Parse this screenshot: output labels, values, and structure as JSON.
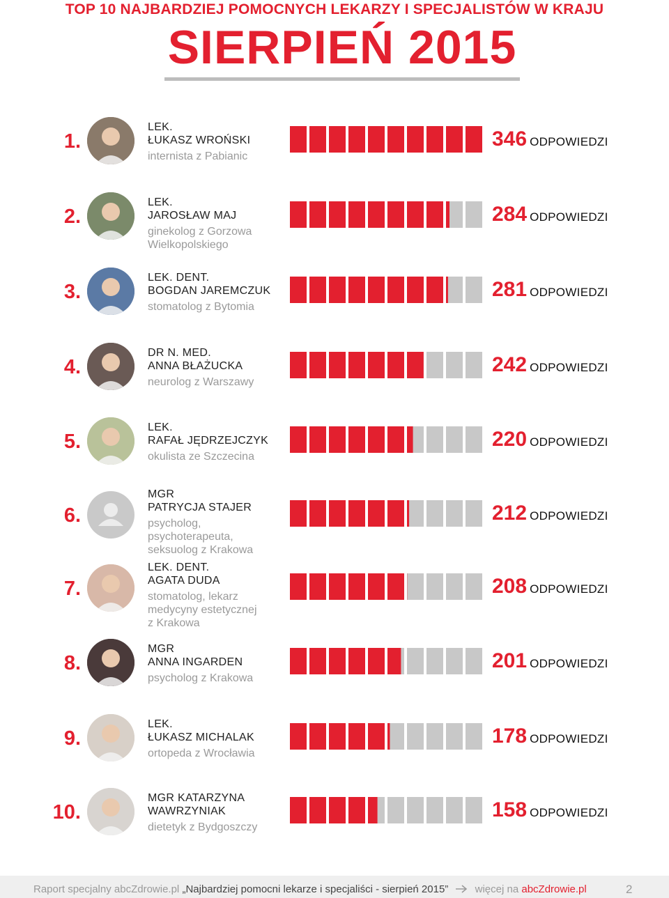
{
  "header": {
    "top_title": "TOP 10 NAJBARDZIEJ POMOCNYCH LEKARZY I SPECJALISTÓW W KRAJU",
    "main_title": "SIERPIEŃ 2015"
  },
  "colors": {
    "accent": "#e3202f",
    "bar_empty": "#c8c8c8",
    "muted_text": "#9a9a9a"
  },
  "count_suffix": "ODPOWIEDZI",
  "chart_data": {
    "type": "bar",
    "segments_per_bar": 10,
    "categories": [
      "1.",
      "2.",
      "3.",
      "4.",
      "5.",
      "6.",
      "7.",
      "8.",
      "9.",
      "10."
    ],
    "values": [
      346,
      284,
      281,
      242,
      220,
      212,
      208,
      201,
      178,
      158
    ],
    "ylim": [
      0,
      346
    ]
  },
  "doctors": [
    {
      "rank": "1.",
      "title": "LEK.",
      "name": "ŁUKASZ WROŃSKI",
      "spec": [
        "internista z Pabianic"
      ],
      "count": "346",
      "avatar": "photo"
    },
    {
      "rank": "2.",
      "title": "LEK.",
      "name": "JAROSŁAW MAJ",
      "spec": [
        "ginekolog z Gorzowa",
        "Wielkopolskiego"
      ],
      "count": "284",
      "avatar": "photo"
    },
    {
      "rank": "3.",
      "title": "LEK. DENT.",
      "name": "BOGDAN JAREMCZUK",
      "spec": [
        "stomatolog z Bytomia"
      ],
      "count": "281",
      "avatar": "photo"
    },
    {
      "rank": "4.",
      "title": "DR N. MED.",
      "name": "ANNA BŁAŻUCKA",
      "spec": [
        "neurolog z Warszawy"
      ],
      "count": "242",
      "avatar": "photo"
    },
    {
      "rank": "5.",
      "title": "LEK.",
      "name": "RAFAŁ JĘDRZEJCZYK",
      "spec": [
        "okulista ze Szczecina"
      ],
      "count": "220",
      "avatar": "photo"
    },
    {
      "rank": "6.",
      "title": "MGR",
      "name": "PATRYCJA STAJER",
      "spec": [
        "psycholog,",
        "psychoterapeuta,",
        "seksuolog z Krakowa"
      ],
      "count": "212",
      "avatar": "placeholder"
    },
    {
      "rank": "7.",
      "title": "LEK. DENT.",
      "name": "AGATA DUDA",
      "spec": [
        "stomatolog, lekarz",
        "medycyny estetycznej",
        "z Krakowa"
      ],
      "count": "208",
      "avatar": "photo"
    },
    {
      "rank": "8.",
      "title": "MGR",
      "name": "ANNA INGARDEN",
      "spec": [
        "psycholog z Krakowa"
      ],
      "count": "201",
      "avatar": "photo"
    },
    {
      "rank": "9.",
      "title": "LEK.",
      "name": "ŁUKASZ MICHALAK",
      "spec": [
        "ortopeda z Wrocławia"
      ],
      "count": "178",
      "avatar": "photo"
    },
    {
      "rank": "10.",
      "title": "MGR KATARZYNA",
      "name": "WAWRZYNIAK",
      "spec": [
        "dietetyk z Bydgoszczy"
      ],
      "count": "158",
      "avatar": "photo"
    }
  ],
  "footer": {
    "prefix": "Raport specjalny abcZdrowie.pl",
    "report_title": "„Najbardziej pomocni lekarze i specjaliści - sierpień 2015”",
    "arrow_icon": "arrow-right-icon",
    "more": "więcej na",
    "link": "abcZdrowie.pl",
    "page": "2"
  }
}
